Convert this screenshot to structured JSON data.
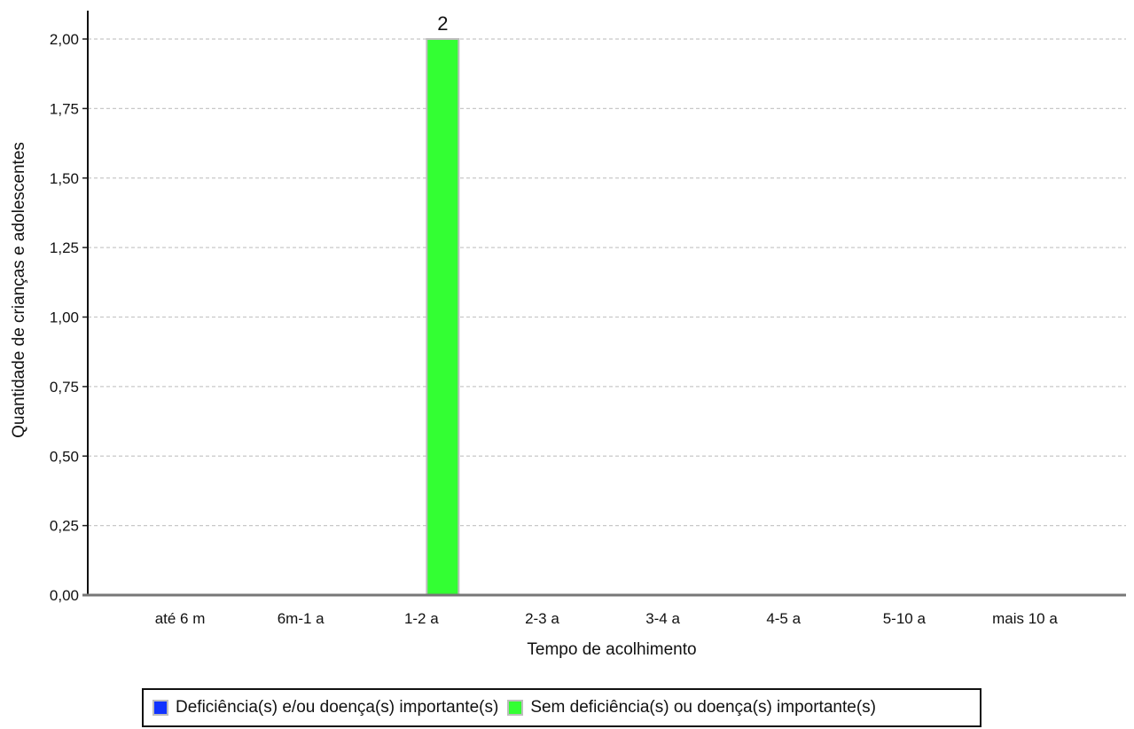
{
  "chart_data": {
    "type": "bar",
    "xlabel": "Tempo de acolhimento",
    "ylabel": "Quantidade de crianças e adolescentes",
    "categories": [
      "até 6 m",
      "6m-1 a",
      "1-2 a",
      "2-3 a",
      "3-4 a",
      "4-5 a",
      "5-10 a",
      "mais 10 a"
    ],
    "series": [
      {
        "name": "Deficiência(s) e/ou doença(s) importante(s)",
        "color": "#1133ff",
        "values": [
          0,
          0,
          0,
          0,
          0,
          0,
          0,
          0
        ]
      },
      {
        "name": "Sem deficiência(s) ou doença(s) importante(s)",
        "color": "#33ff33",
        "values": [
          0,
          0,
          2,
          0,
          0,
          0,
          0,
          0
        ]
      }
    ],
    "data_labels": [
      {
        "category": "1-2 a",
        "text": "2"
      }
    ],
    "ylim": [
      0,
      2
    ],
    "yticks": [
      "0,00",
      "0,25",
      "0,50",
      "0,75",
      "1,00",
      "1,25",
      "1,50",
      "1,75",
      "2,00"
    ],
    "ytick_values": [
      0,
      0.25,
      0.5,
      0.75,
      1.0,
      1.25,
      1.5,
      1.75,
      2.0
    ],
    "grid": "horizontal dashed",
    "legend_position": "bottom"
  }
}
